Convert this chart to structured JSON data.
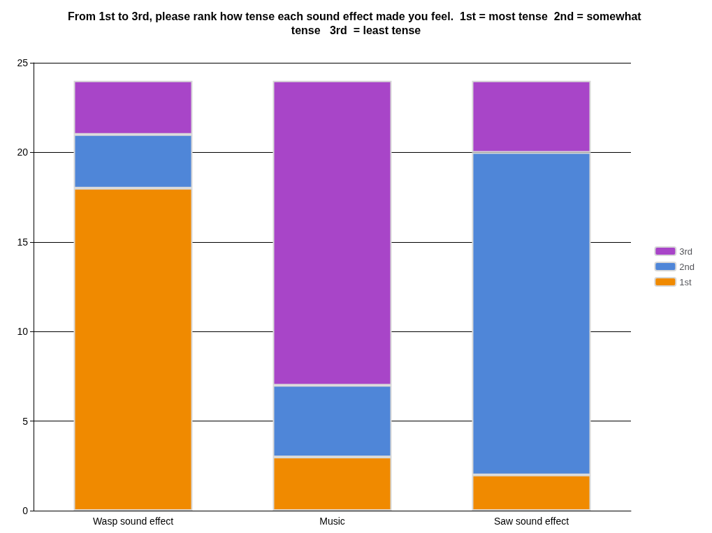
{
  "chart_data": {
    "type": "bar",
    "title": "From 1st to 3rd, please rank how tense each sound effect made you feel.  1st = most tense  2nd = somewhat tense   3rd  = least tense",
    "categories": [
      "Wasp sound effect",
      "Music",
      "Saw sound effect"
    ],
    "series": [
      {
        "name": "1st",
        "color": "#f08a00",
        "values": [
          18,
          3,
          2
        ]
      },
      {
        "name": "2nd",
        "color": "#4f86d8",
        "values": [
          3,
          4,
          18
        ]
      },
      {
        "name": "3rd",
        "color": "#a845c8",
        "values": [
          3,
          17,
          4
        ]
      }
    ],
    "stacked": true,
    "ylim": [
      0,
      25
    ],
    "yticks": [
      0,
      5,
      10,
      15,
      20,
      25
    ],
    "grid": "y",
    "legend": "right"
  }
}
